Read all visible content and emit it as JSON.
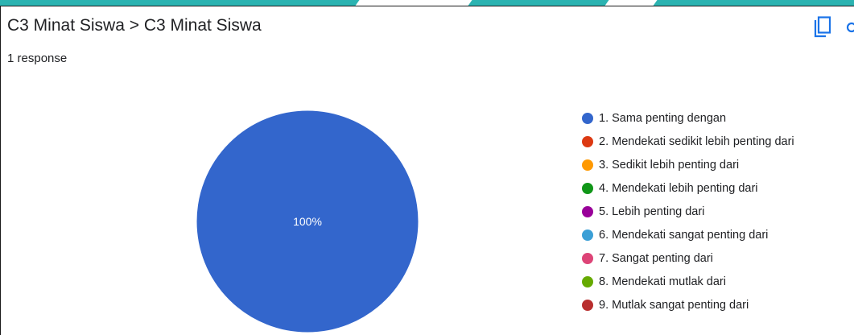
{
  "header": {
    "title": "C3 Minat Siswa > C3 Minat Siswa",
    "response_count": "1 response",
    "copy_icon": "copy-icon",
    "more_icon": "more-icon"
  },
  "colors": {
    "accent": "#2bb3b1",
    "copy_icon": "#1a73e8"
  },
  "chart_data": {
    "type": "pie",
    "series": [
      {
        "name": "1. Sama penting dengan",
        "value": 100,
        "label": "100%",
        "color": "#3366cc"
      },
      {
        "name": "2. Mendekati sedikit lebih penting dari",
        "value": 0,
        "color": "#dc3912"
      },
      {
        "name": "3. Sedikit lebih penting dari",
        "value": 0,
        "color": "#ff9900"
      },
      {
        "name": "4. Mendekati lebih penting dari",
        "value": 0,
        "color": "#109618"
      },
      {
        "name": "5. Lebih penting dari",
        "value": 0,
        "color": "#990099"
      },
      {
        "name": "6. Mendekati sangat penting dari",
        "value": 0,
        "color": "#3b9fd6"
      },
      {
        "name": "7. Sangat penting dari",
        "value": 0,
        "color": "#dd4477"
      },
      {
        "name": "8. Mendekati mutlak dari",
        "value": 0,
        "color": "#66aa00"
      },
      {
        "name": "9. Mutlak sangat penting dari",
        "value": 0,
        "color": "#b82e2e"
      }
    ],
    "legend_position": "right"
  }
}
